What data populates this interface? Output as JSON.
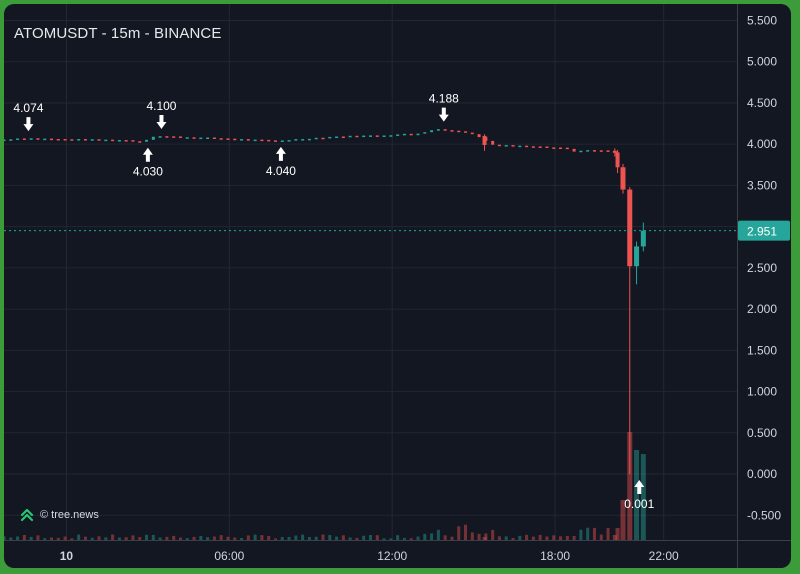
{
  "title": "ATOMUSDT - 15m - BINANCE",
  "brand": {
    "icon": "tree-news-logo-icon",
    "text": "© tree.news"
  },
  "colors": {
    "up": "#26a69a",
    "down": "#ef5350",
    "background": "#131722",
    "grid": "#232733",
    "text": "#d1d4dc",
    "frame": "#3d9c3a",
    "current_price_bg": "#26a69a"
  },
  "current_price_label": "2.951",
  "chart_data": {
    "type": "candlestick",
    "yticks": [
      "5.500",
      "5.000",
      "4.500",
      "4.000",
      "3.500",
      "3.000",
      "2.500",
      "2.000",
      "1.500",
      "1.000",
      "0.500",
      "0.000",
      "-0.500"
    ],
    "ylim": [
      -0.8,
      5.7
    ],
    "xticks": [
      {
        "label": "10",
        "bold": true,
        "t": 0
      },
      {
        "label": "06:00",
        "t": 6
      },
      {
        "label": "12:00",
        "t": 12
      },
      {
        "label": "18:00",
        "t": 18
      },
      {
        "label": "22:00",
        "t": 22
      }
    ],
    "xlim": [
      -2.3,
      24.7
    ],
    "current_price": 2.951,
    "annotations": [
      {
        "text": "4.074",
        "t": -1.4,
        "price": 4.074,
        "dir": "down"
      },
      {
        "text": "4.030",
        "t": 3.0,
        "price": 4.03,
        "dir": "up"
      },
      {
        "text": "4.100",
        "t": 3.5,
        "price": 4.1,
        "dir": "down"
      },
      {
        "text": "4.040",
        "t": 7.9,
        "price": 4.04,
        "dir": "up"
      },
      {
        "text": "4.188",
        "t": 13.9,
        "price": 4.188,
        "dir": "down"
      },
      {
        "text": "0.001",
        "t": 21.1,
        "price": 0.001,
        "dir": "up"
      }
    ],
    "candles": [
      {
        "t": 15.4,
        "o": 4.1,
        "h": 4.12,
        "c": 3.99,
        "l": 3.92
      },
      {
        "t": 20.2,
        "o": 3.92,
        "h": 3.95,
        "c": 3.9,
        "l": 3.85
      },
      {
        "t": 20.3,
        "o": 3.9,
        "h": 3.93,
        "c": 3.72,
        "l": 3.65
      },
      {
        "t": 20.5,
        "o": 3.72,
        "h": 3.76,
        "c": 3.45,
        "l": 3.4
      },
      {
        "t": 20.75,
        "o": 3.45,
        "h": 3.48,
        "c": 2.52,
        "l": 0.001
      },
      {
        "t": 21.0,
        "o": 2.52,
        "h": 2.82,
        "c": 2.76,
        "l": 2.3
      },
      {
        "t": 21.25,
        "o": 2.76,
        "h": 3.05,
        "c": 2.951,
        "l": 2.7
      }
    ]
  }
}
